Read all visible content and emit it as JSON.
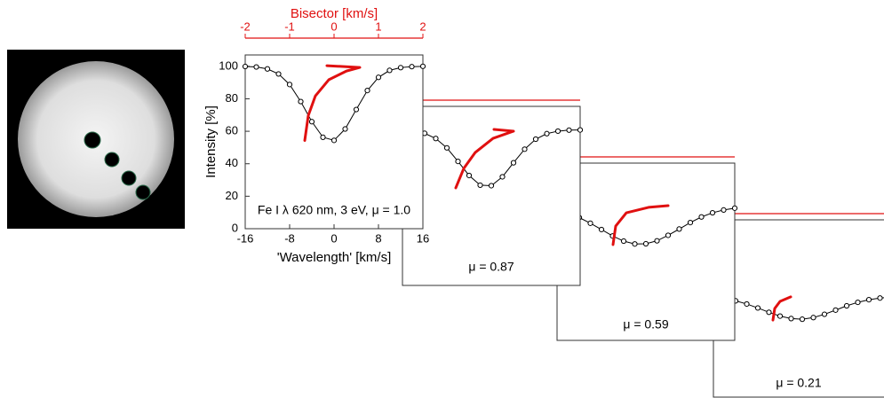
{
  "chart_data": [
    {
      "type": "line",
      "x2label": "Bisector [km/s]",
      "ylabel": "Intensity [%]",
      "xlabel": "'Wavelength' [km/s]",
      "annotation": "Fe I λ 620 nm, 3 eV, μ = 1.0",
      "xlim": [
        -16,
        16
      ],
      "ylim": [
        0,
        107
      ],
      "x2lim": [
        -2,
        2
      ],
      "xticks": [
        -16,
        -8,
        0,
        8,
        16
      ],
      "yticks": [
        0,
        20,
        40,
        60,
        80,
        100
      ],
      "x2ticks": [
        -2,
        -1,
        0,
        1,
        2
      ],
      "x": [
        -16,
        -14,
        -12,
        -10,
        -8,
        -6,
        -4,
        -2,
        0,
        2,
        4,
        6,
        8,
        10,
        12,
        14,
        16
      ],
      "series": [
        {
          "color": "#000000",
          "values": [
            99.9,
            99.6,
            98.4,
            95.3,
            88.8,
            78.3,
            65.9,
            56.3,
            54.4,
            61.4,
            73.4,
            85.1,
            93.2,
            97.5,
            99.2,
            99.8,
            100.0
          ]
        }
      ],
      "bisector": {
        "color": "#e01010",
        "x": [
          -0.66,
          -0.58,
          -0.42,
          -0.12,
          0.28,
          0.58,
          -0.16
        ],
        "y": [
          54.3,
          69.7,
          81.8,
          91.7,
          97.1,
          99.3,
          100.4
        ]
      }
    },
    {
      "type": "line",
      "annotation": "μ = 0.87",
      "xlim": [
        -16,
        16
      ],
      "ylim": [
        0,
        107
      ],
      "x2lim": [
        -2,
        2
      ],
      "x": [
        -16,
        -14,
        -12,
        -10,
        -8,
        -6,
        -4,
        -2,
        0,
        2,
        4,
        6,
        8,
        10,
        12,
        14,
        16
      ],
      "series": [
        {
          "color": "#000000",
          "values": [
            92.8,
            92.3,
            90.9,
            87.8,
            82.2,
            74.1,
            65.7,
            59.9,
            59.6,
            64.9,
            73.3,
            81.4,
            87.4,
            90.7,
            92.2,
            92.8,
            92.9
          ]
        }
      ],
      "bisector": {
        "color": "#e01010",
        "x": [
          -0.8,
          -0.62,
          -0.36,
          0.04,
          0.5,
          0.06
        ],
        "y": [
          58.3,
          69.9,
          79.5,
          87.9,
          92.2,
          93.2
        ]
      }
    },
    {
      "type": "line",
      "annotation": "μ = 0.59",
      "xlim": [
        -16,
        16
      ],
      "ylim": [
        0,
        107
      ],
      "x2lim": [
        -2,
        2
      ],
      "x": [
        -16,
        -14,
        -12,
        -10,
        -8,
        -6,
        -4,
        -2,
        0,
        2,
        4,
        6,
        8,
        10,
        12,
        14,
        16
      ],
      "series": [
        {
          "color": "#000000",
          "values": [
            78.6,
            76.8,
            74.1,
            70.7,
            66.9,
            63.0,
            59.9,
            58.2,
            58.3,
            60.1,
            63.4,
            67.2,
            71.1,
            74.5,
            77.0,
            78.7,
            79.8
          ]
        }
      ],
      "bisector": {
        "color": "#e01010",
        "x": [
          -0.74,
          -0.68,
          -0.44,
          0.06,
          0.5
        ],
        "y": [
          57.8,
          69.0,
          77.0,
          80.3,
          81.3
        ]
      }
    },
    {
      "type": "line",
      "annotation": "μ = 0.21",
      "xlim": [
        -16,
        16
      ],
      "ylim": [
        0,
        107
      ],
      "x2lim": [
        -2,
        2
      ],
      "x": [
        -16,
        -14,
        -12,
        -10,
        -8,
        -6,
        -4,
        -2,
        0,
        2,
        4,
        6,
        8,
        10,
        12,
        14,
        16
      ],
      "series": [
        {
          "color": "#000000",
          "values": [
            60.2,
            59.4,
            58.1,
            56.2,
            53.8,
            51.2,
            48.9,
            47.4,
            47.0,
            48.0,
            50.0,
            52.5,
            55.1,
            57.2,
            58.8,
            59.8,
            60.4
          ]
        }
      ],
      "bisector": {
        "color": "#e01010",
        "x": [
          -0.66,
          -0.62,
          -0.5,
          -0.26
        ],
        "y": [
          46.5,
          53.5,
          57.8,
          60.5
        ]
      }
    }
  ]
}
